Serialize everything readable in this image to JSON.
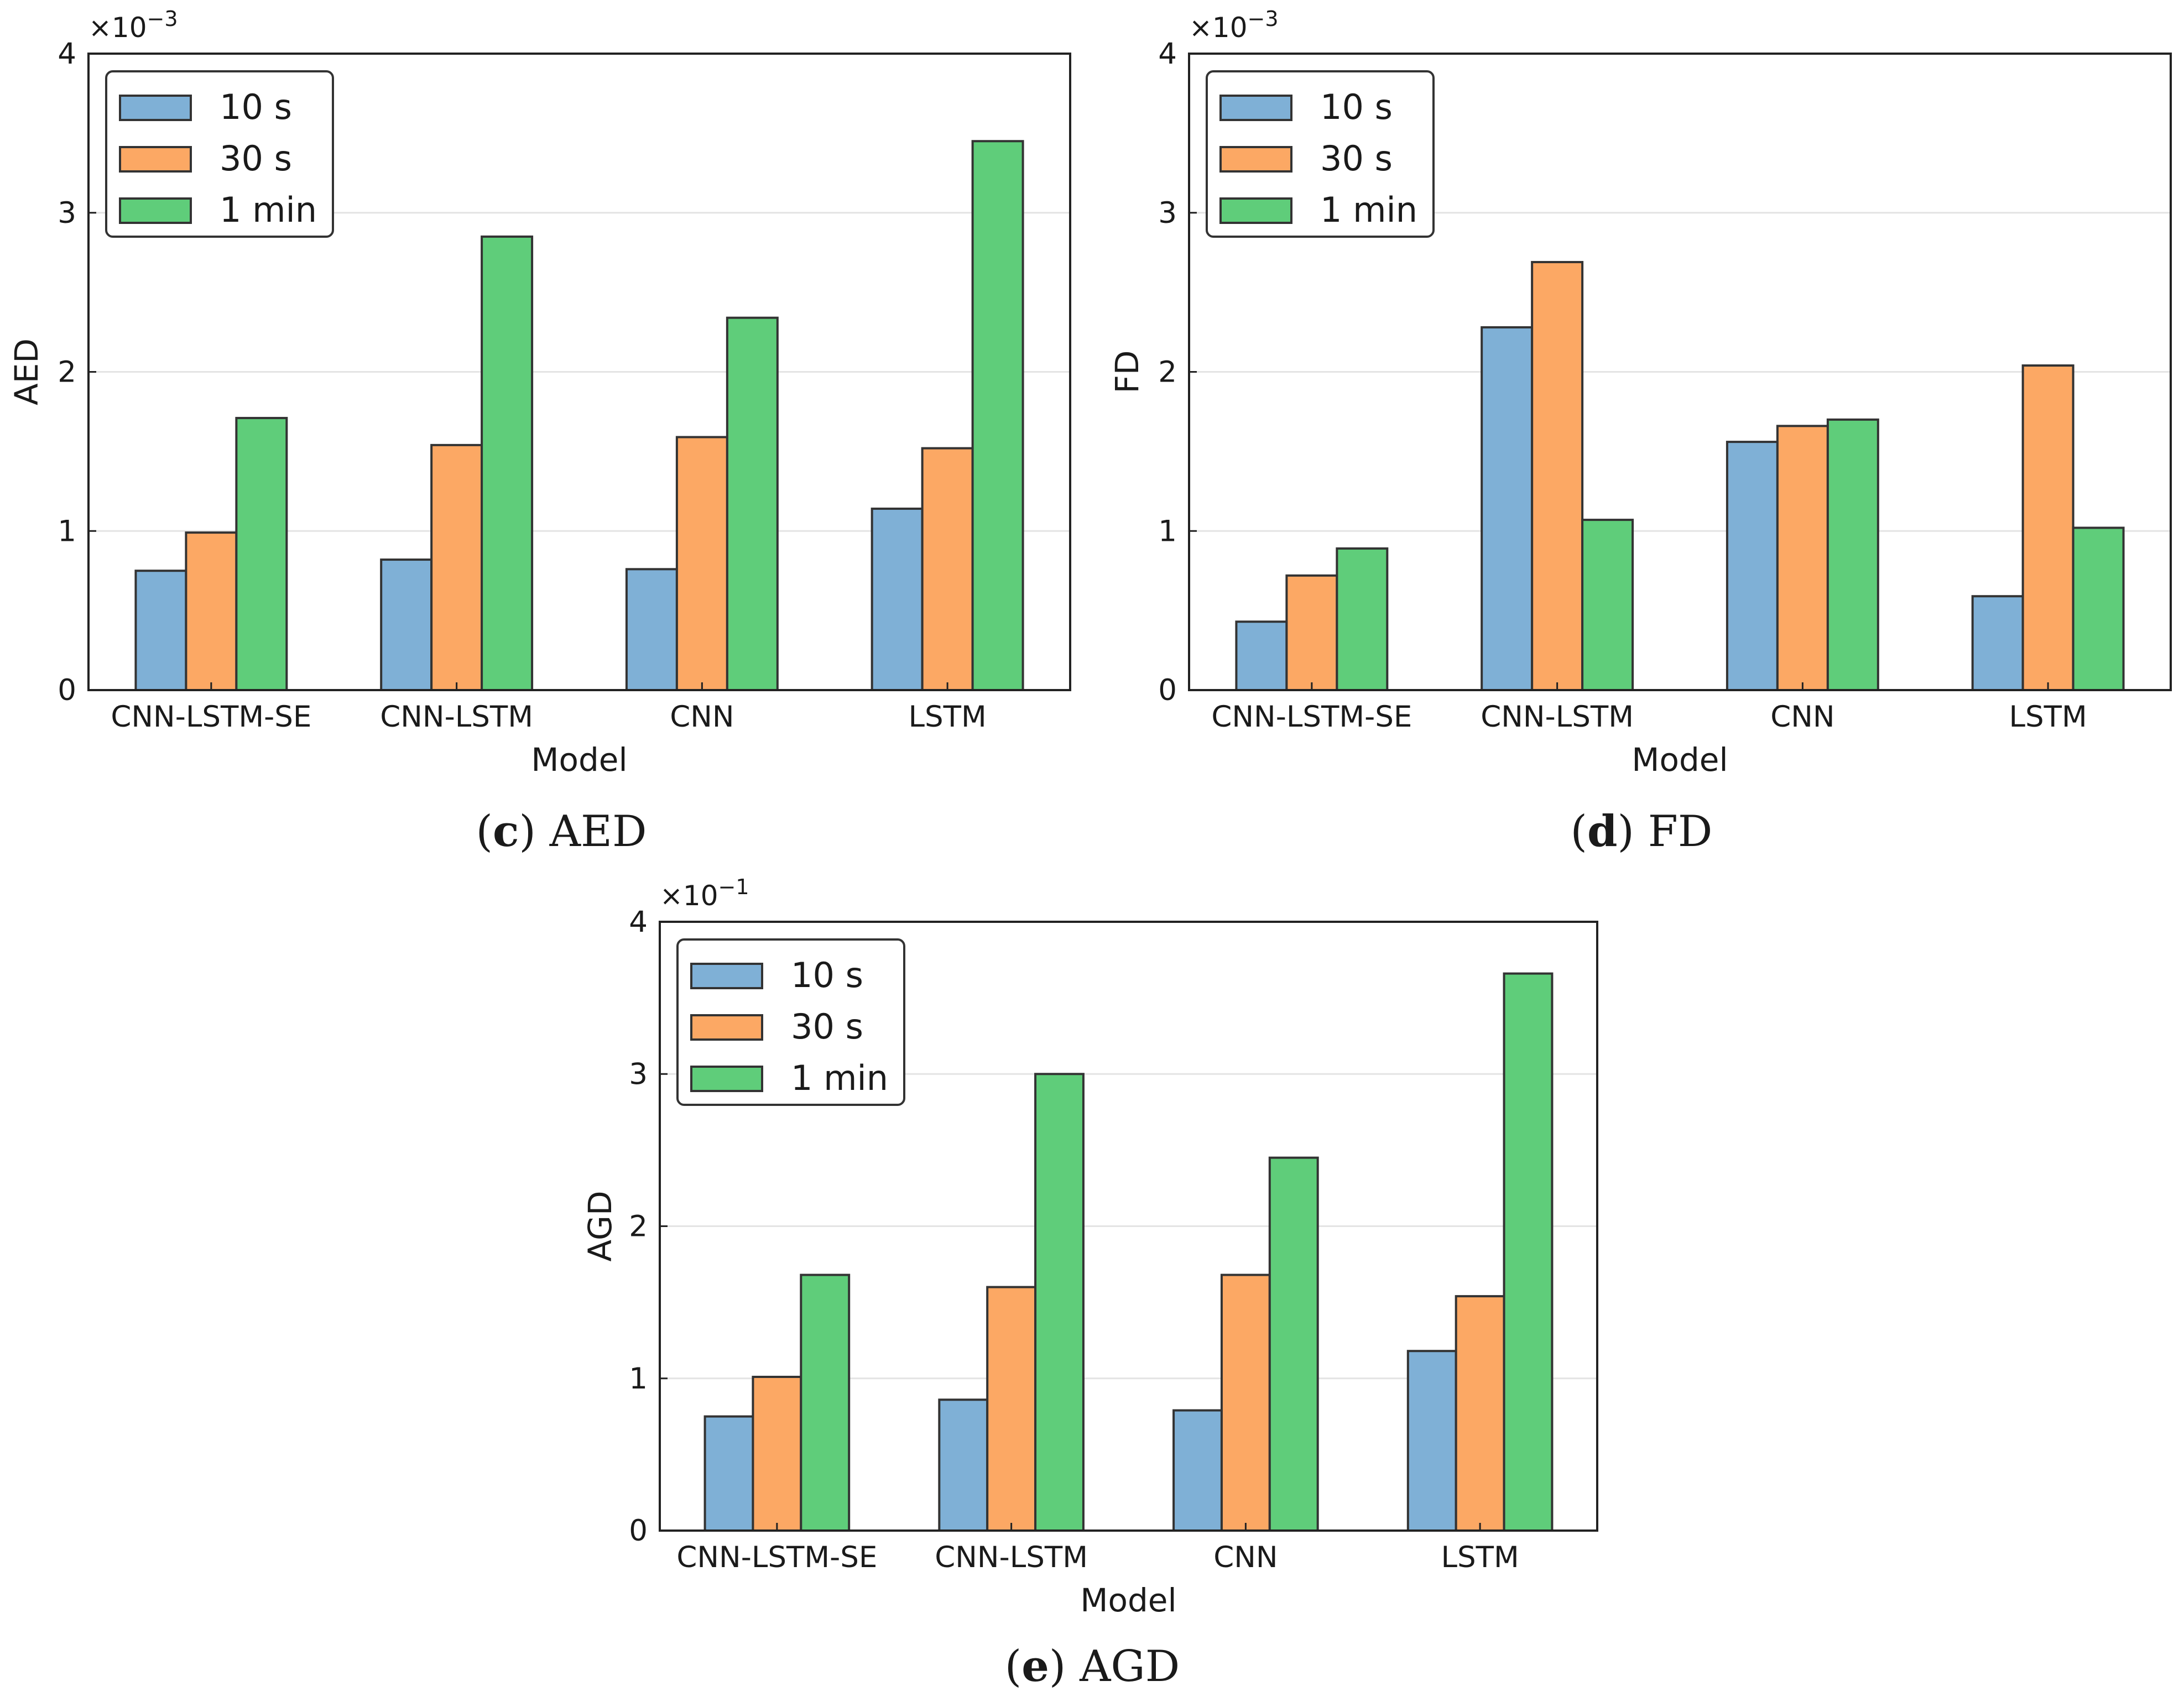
{
  "colors": {
    "10s": "#7fb0d6",
    "30s": "#fca864",
    "1min": "#5fcd7a",
    "edge": "#333333",
    "grid": "#e4e4e4"
  },
  "chart_data": [
    {
      "id": "aed",
      "type": "bar",
      "categories": [
        "CNN-LSTM-SE",
        "CNN-LSTM",
        "CNN",
        "LSTM"
      ],
      "series": [
        {
          "name": "10 s",
          "color_key": "10s",
          "values": [
            0.75,
            0.82,
            0.76,
            1.14
          ]
        },
        {
          "name": "30 s",
          "color_key": "30s",
          "values": [
            0.99,
            1.54,
            1.59,
            1.52
          ]
        },
        {
          "name": "1 min",
          "color_key": "1min",
          "values": [
            1.71,
            2.85,
            2.34,
            3.45
          ]
        }
      ],
      "ylim": [
        0,
        4
      ],
      "yticks": [
        "0",
        "1",
        "2",
        "3",
        "4"
      ],
      "multiplier": {
        "base": "×10",
        "exp": "−3"
      },
      "xlabel": "Model",
      "ylabel": "AED",
      "legend": "top-left",
      "grid": true,
      "caption": {
        "letter": "c",
        "text": "AED"
      }
    },
    {
      "id": "fd",
      "type": "bar",
      "categories": [
        "CNN-LSTM-SE",
        "CNN-LSTM",
        "CNN",
        "LSTM"
      ],
      "series": [
        {
          "name": "10 s",
          "color_key": "10s",
          "values": [
            0.43,
            2.28,
            1.56,
            0.59
          ]
        },
        {
          "name": "30 s",
          "color_key": "30s",
          "values": [
            0.72,
            2.69,
            1.66,
            2.04
          ]
        },
        {
          "name": "1 min",
          "color_key": "1min",
          "values": [
            0.89,
            1.07,
            1.7,
            1.02
          ]
        }
      ],
      "ylim": [
        0,
        4
      ],
      "yticks": [
        "0",
        "1",
        "2",
        "3",
        "4"
      ],
      "multiplier": {
        "base": "×10",
        "exp": "−3"
      },
      "xlabel": "Model",
      "ylabel": "FD",
      "legend": "top-left",
      "grid": true,
      "caption": {
        "letter": "d",
        "text": "FD"
      }
    },
    {
      "id": "agd",
      "type": "bar",
      "categories": [
        "CNN-LSTM-SE",
        "CNN-LSTM",
        "CNN",
        "LSTM"
      ],
      "series": [
        {
          "name": "10 s",
          "color_key": "10s",
          "values": [
            0.75,
            0.86,
            0.79,
            1.18
          ]
        },
        {
          "name": "30 s",
          "color_key": "30s",
          "values": [
            1.01,
            1.6,
            1.68,
            1.54
          ]
        },
        {
          "name": "1 min",
          "color_key": "1min",
          "values": [
            1.68,
            3.0,
            2.45,
            3.66
          ]
        }
      ],
      "ylim": [
        0,
        4
      ],
      "yticks": [
        "0",
        "1",
        "2",
        "3",
        "4"
      ],
      "multiplier": {
        "base": "×10",
        "exp": "−1"
      },
      "xlabel": "Model",
      "ylabel": "AGD",
      "legend": "top-left",
      "grid": true,
      "caption": {
        "letter": "e",
        "text": "AGD"
      }
    }
  ]
}
